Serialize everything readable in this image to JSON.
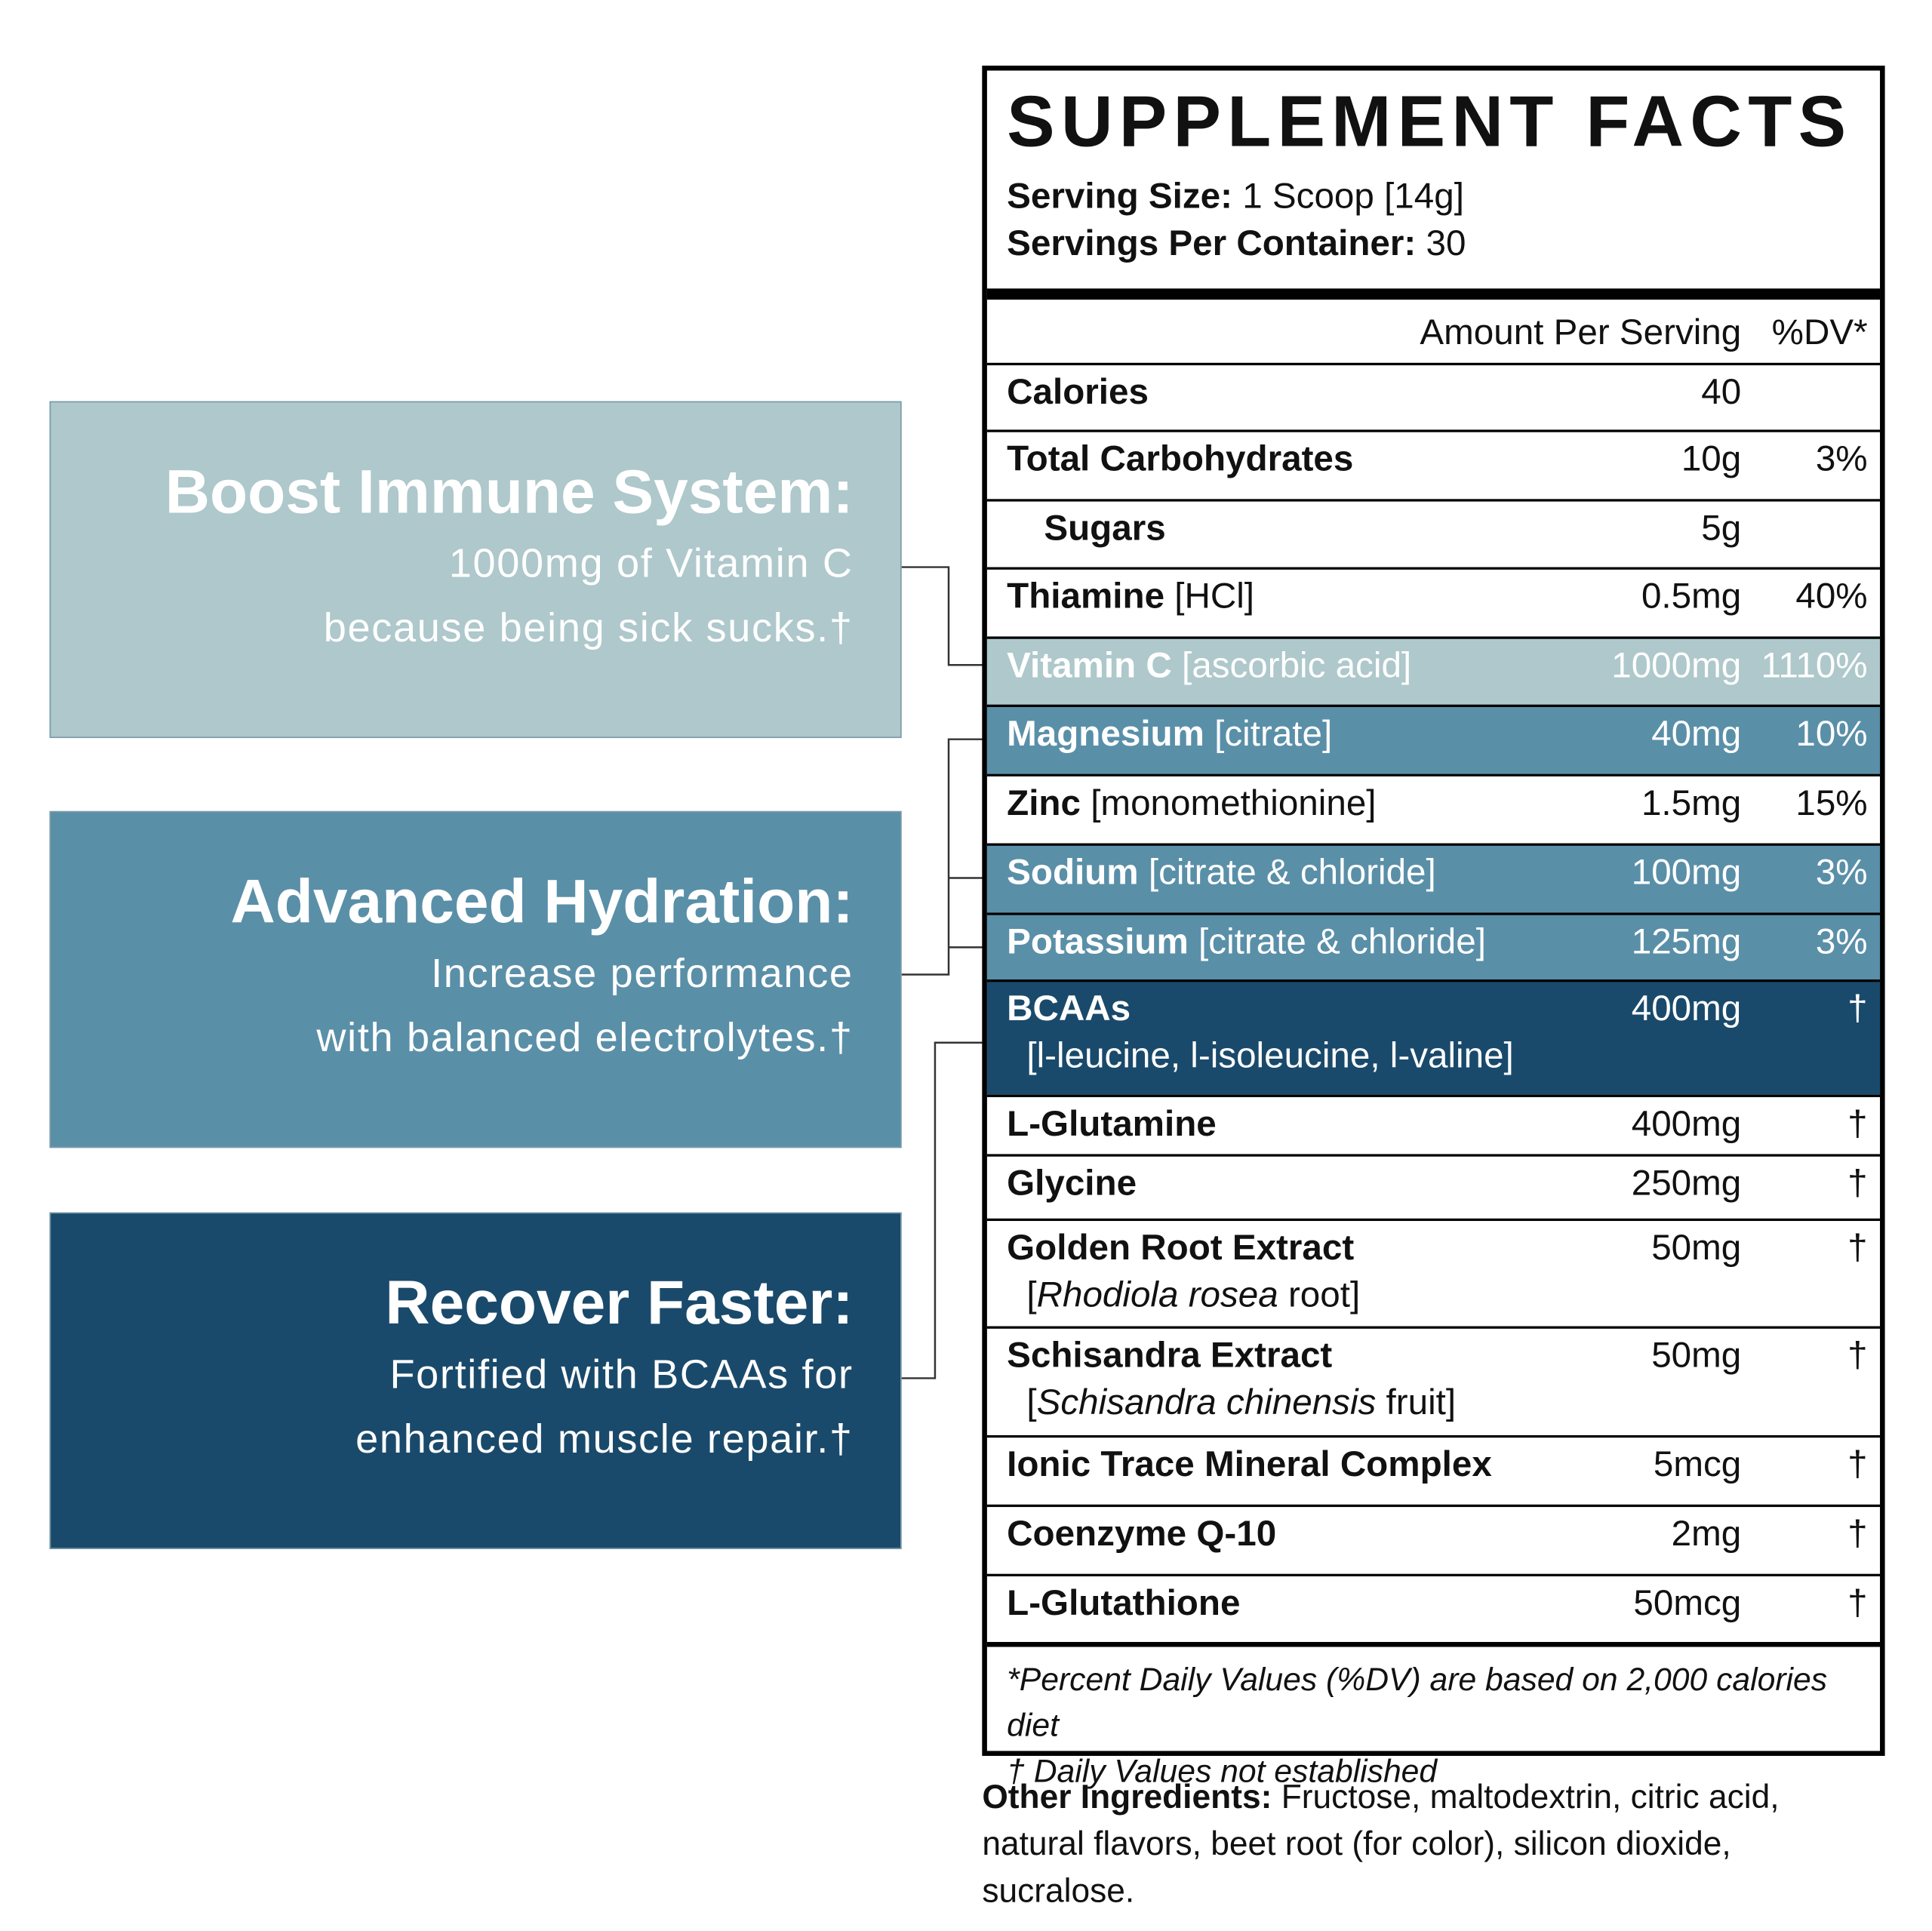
{
  "panels": [
    {
      "title": "Boost Immune System:",
      "lines": [
        "1000mg of Vitamin C",
        "because being sick sucks.†"
      ],
      "color": "#aec8cb"
    },
    {
      "title": "Advanced Hydration:",
      "lines": [
        "Increase performance",
        "with balanced electrolytes.†"
      ],
      "color": "#5a8fa8"
    },
    {
      "title": "Recover Faster:",
      "lines": [
        "Fortified with BCAAs for",
        "enhanced muscle repair.†"
      ],
      "color": "#1a4a6b"
    }
  ],
  "facts": {
    "title": "SUPPLEMENT FACTS",
    "serving_size_label": "Serving Size:",
    "serving_size": "1 Scoop [14g]",
    "servings_label": "Servings Per Container:",
    "servings": "30",
    "amount_header": "Amount Per Serving",
    "dv_header": "%DV*",
    "rows": [
      {
        "name": "Calories",
        "amount": "40"
      },
      {
        "name": "Total Carbohydrates",
        "amount": "10g",
        "dv": "3%"
      },
      {
        "name": "Sugars",
        "amount": "5g",
        "indent": true
      },
      {
        "name": "Thiamine",
        "detail": "[HCl]",
        "amount": "0.5mg",
        "dv": "40%"
      },
      {
        "name": "Vitamin C",
        "detail": "[ascorbic acid]",
        "amount": "1000mg",
        "dv": "1110%",
        "color": "#aec8cb"
      },
      {
        "name": "Magnesium",
        "detail": "[citrate]",
        "amount": "40mg",
        "dv": "10%",
        "color": "#5a8fa8"
      },
      {
        "name": "Zinc",
        "detail": "[monomethionine]",
        "amount": "1.5mg",
        "dv": "15%"
      },
      {
        "name": "Sodium",
        "detail": "[citrate & chloride]",
        "amount": "100mg",
        "dv": "3%",
        "color": "#5a8fa8"
      },
      {
        "name": "Potassium",
        "detail": "[citrate & chloride]",
        "amount": "125mg",
        "dv": "3%",
        "color": "#5a8fa8"
      },
      {
        "name": "BCAAs",
        "detail": [
          {
            "text": "[l-leucine, l-isoleucine, l-valine]"
          }
        ],
        "amount": "400mg",
        "dv": "†",
        "color": "#1a4a6b"
      },
      {
        "name": "L-Glutamine",
        "amount": "400mg",
        "dv": "†"
      },
      {
        "name": "Glycine",
        "amount": "250mg",
        "dv": "†"
      },
      {
        "name": "Golden Root Extract",
        "detail": [
          {
            "text": "["
          },
          {
            "text": "Rhodiola rosea",
            "italic": true
          },
          {
            "text": " root]"
          }
        ],
        "amount": "50mg",
        "dv": "†"
      },
      {
        "name": "Schisandra Extract",
        "detail": [
          {
            "text": "["
          },
          {
            "text": "Schisandra chinensis",
            "italic": true
          },
          {
            "text": " fruit]"
          }
        ],
        "amount": "50mg",
        "dv": "†"
      },
      {
        "name": "Ionic Trace Mineral Complex",
        "amount": "5mcg",
        "dv": "†"
      },
      {
        "name": "Coenzyme Q-10",
        "amount": "2mg",
        "dv": "†"
      },
      {
        "name": "L-Glutathione",
        "amount": "50mcg",
        "dv": "†"
      }
    ],
    "footnotes": [
      "*Percent Daily Values (%DV) are based on 2,000 calories diet",
      "† Daily Values not established"
    ],
    "other_label": "Other Ingredients:",
    "other_text": "Fructose, maltodextrin, citric acid, natural flavors, beet root (for color), silicon dioxide, sucralose."
  }
}
